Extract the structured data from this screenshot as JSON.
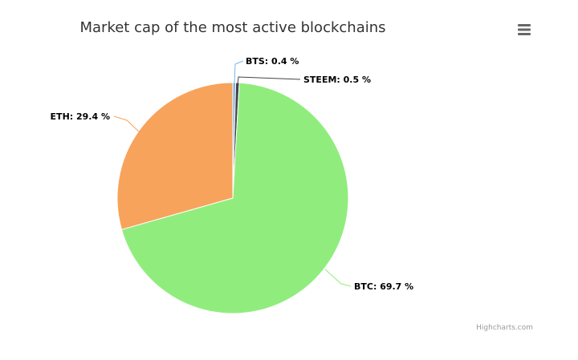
{
  "chart_data": {
    "type": "pie",
    "title": "Market cap of the most active blockchains",
    "series": [
      {
        "name": "",
        "data": [
          {
            "name": "BTS",
            "value": 0.4,
            "color": "#7cb5ec"
          },
          {
            "name": "STEEM",
            "value": 0.5,
            "color": "#434348"
          },
          {
            "name": "BTC",
            "value": 69.7,
            "color": "#90ed7d"
          },
          {
            "name": "ETH",
            "value": 29.4,
            "color": "#f7a35c"
          }
        ]
      }
    ],
    "data_labels": [
      "BTS: 0.4 %",
      "STEEM: 0.5 %",
      "BTC: 69.7 %",
      "ETH: 29.4 %"
    ],
    "label_color": "#000000",
    "slice_border_color": "#ffffff"
  },
  "export_menu": {
    "icon": "hamburger-menu-icon",
    "color": "#666666"
  },
  "credits": {
    "text": "Highcharts.com"
  }
}
